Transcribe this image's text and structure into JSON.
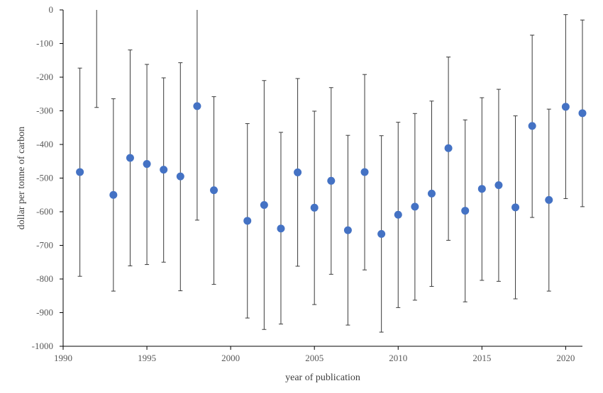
{
  "chart_data": {
    "type": "scatter",
    "title": "",
    "xlabel": "year of publication",
    "ylabel": "dollar per tonne of carbon",
    "xlim": [
      1990,
      2021
    ],
    "ylim": [
      -1000,
      0
    ],
    "x_ticks": [
      1990,
      1995,
      2000,
      2005,
      2010,
      2015,
      2020
    ],
    "y_ticks": [
      0,
      -100,
      -200,
      -300,
      -400,
      -500,
      -600,
      -700,
      -800,
      -900,
      -1000
    ],
    "grid": false,
    "legend": "none",
    "colors": {
      "marker": "#4472C4",
      "error_bar": "#3a3a3a"
    },
    "series": [
      {
        "points": [
          {
            "x": 1991,
            "y": -482,
            "low": -792,
            "high": -173
          },
          {
            "x": 1992,
            "y": null,
            "low": -290,
            "high": 0
          },
          {
            "x": 1993,
            "y": -550,
            "low": -836,
            "high": -264
          },
          {
            "x": 1994,
            "y": -440,
            "low": -761,
            "high": -119
          },
          {
            "x": 1995,
            "y": -458,
            "low": -757,
            "high": -162
          },
          {
            "x": 1996,
            "y": -475,
            "low": -750,
            "high": -202
          },
          {
            "x": 1997,
            "y": -495,
            "low": -835,
            "high": -157
          },
          {
            "x": 1998,
            "y": -286,
            "low": -625,
            "high": 0
          },
          {
            "x": 1999,
            "y": -536,
            "low": -816,
            "high": -258
          },
          {
            "x": 2001,
            "y": -627,
            "low": -916,
            "high": -338
          },
          {
            "x": 2002,
            "y": -580,
            "low": -950,
            "high": -210
          },
          {
            "x": 2003,
            "y": -650,
            "low": -934,
            "high": -364
          },
          {
            "x": 2004,
            "y": -483,
            "low": -762,
            "high": -204
          },
          {
            "x": 2005,
            "y": -588,
            "low": -876,
            "high": -301
          },
          {
            "x": 2006,
            "y": -508,
            "low": -786,
            "high": -231
          },
          {
            "x": 2007,
            "y": -655,
            "low": -937,
            "high": -373
          },
          {
            "x": 2008,
            "y": -482,
            "low": -773,
            "high": -192
          },
          {
            "x": 2009,
            "y": -666,
            "low": -958,
            "high": -374
          },
          {
            "x": 2010,
            "y": -609,
            "low": -885,
            "high": -334
          },
          {
            "x": 2011,
            "y": -585,
            "low": -863,
            "high": -308
          },
          {
            "x": 2012,
            "y": -546,
            "low": -822,
            "high": -271
          },
          {
            "x": 2013,
            "y": -411,
            "low": -685,
            "high": -140
          },
          {
            "x": 2014,
            "y": -597,
            "low": -868,
            "high": -327
          },
          {
            "x": 2015,
            "y": -532,
            "low": -804,
            "high": -261
          },
          {
            "x": 2016,
            "y": -521,
            "low": -807,
            "high": -236
          },
          {
            "x": 2017,
            "y": -587,
            "low": -859,
            "high": -315
          },
          {
            "x": 2018,
            "y": -345,
            "low": -617,
            "high": -75
          },
          {
            "x": 2019,
            "y": -565,
            "low": -836,
            "high": -295
          },
          {
            "x": 2020,
            "y": -288,
            "low": -561,
            "high": -14
          },
          {
            "x": 2021,
            "y": -307,
            "low": -585,
            "high": -30
          }
        ]
      }
    ]
  }
}
